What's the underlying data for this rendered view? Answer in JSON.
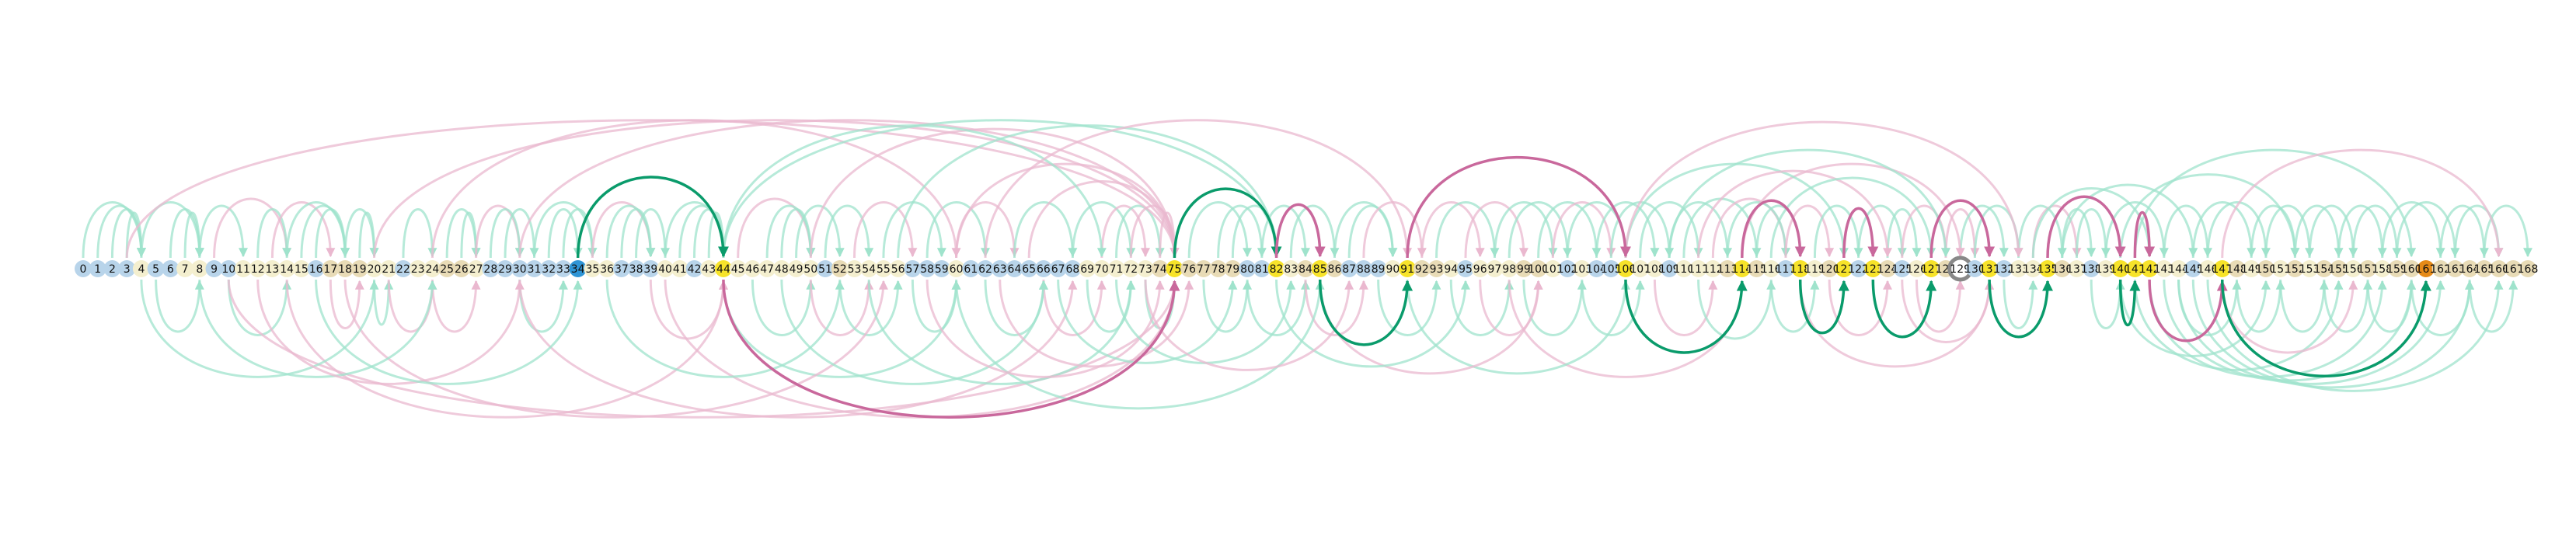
{
  "diagram": {
    "node_count": 169,
    "node_types": {
      "0": "blue",
      "1": "blue",
      "2": "blue",
      "3": "blue",
      "4": "cream",
      "5": "blue",
      "6": "blue",
      "7": "cream",
      "8": "cream",
      "9": "blue",
      "10": "blue",
      "11": "cream",
      "12": "cream",
      "13": "cream",
      "14": "cream",
      "15": "cream",
      "16": "blue",
      "17": "tan",
      "18": "tan",
      "19": "tan",
      "20": "cream",
      "21": "cream",
      "22": "blue",
      "23": "cream",
      "24": "cream",
      "25": "tan",
      "26": "tan",
      "27": "cream",
      "28": "blue",
      "29": "blue",
      "30": "blue",
      "31": "blue",
      "32": "blue",
      "33": "blue",
      "34": "accent-blue",
      "35": "cream",
      "36": "cream",
      "37": "blue",
      "38": "blue",
      "39": "blue",
      "40": "cream",
      "41": "cream",
      "42": "blue",
      "43": "cream",
      "44": "yellow",
      "45": "cream",
      "46": "cream",
      "47": "cream",
      "48": "cream",
      "49": "cream",
      "50": "cream",
      "51": "blue",
      "52": "tan",
      "53": "cream",
      "54": "cream",
      "55": "cream",
      "56": "cream",
      "57": "blue",
      "58": "blue",
      "59": "blue",
      "60": "cream",
      "61": "blue",
      "62": "blue",
      "63": "blue",
      "64": "blue",
      "65": "blue",
      "66": "blue",
      "67": "blue",
      "68": "blue",
      "69": "cream",
      "70": "cream",
      "71": "cream",
      "72": "cream",
      "73": "cream",
      "74": "tan",
      "75": "yellow",
      "76": "tan",
      "77": "tan",
      "78": "tan",
      "79": "tan",
      "80": "blue",
      "81": "blue",
      "82": "yellow",
      "83": "cream",
      "84": "tan",
      "85": "yellow",
      "86": "tan",
      "87": "blue",
      "88": "blue",
      "89": "blue",
      "90": "cream",
      "91": "yellow",
      "92": "tan",
      "93": "tan",
      "94": "cream",
      "95": "blue",
      "96": "cream",
      "97": "cream",
      "98": "cream",
      "99": "tan",
      "100": "tan",
      "101": "cream",
      "102": "blue",
      "103": "cream",
      "104": "blue",
      "105": "blue",
      "106": "yellow",
      "107": "cream",
      "108": "cream",
      "109": "blue",
      "110": "cream",
      "111": "cream",
      "112": "cream",
      "113": "tan",
      "114": "yellow",
      "115": "tan",
      "116": "cream",
      "117": "blue",
      "118": "yellow",
      "119": "cream",
      "120": "tan",
      "121": "yellow",
      "122": "blue",
      "123": "yellow",
      "124": "tan",
      "125": "blue",
      "126": "cream",
      "127": "yellow",
      "128": "tan",
      "129": "gray-ring",
      "130": "blue",
      "131": "yellow",
      "132": "blue",
      "133": "cream",
      "134": "cream",
      "135": "yellow",
      "136": "tan",
      "137": "cream",
      "138": "blue",
      "139": "cream",
      "140": "yellow",
      "141": "yellow",
      "142": "yellow",
      "143": "cream",
      "144": "cream",
      "145": "blue",
      "146": "cream",
      "147": "yellow",
      "148": "tan",
      "149": "cream",
      "150": "tan",
      "151": "cream",
      "152": "tan",
      "153": "cream",
      "154": "tan",
      "155": "tan",
      "156": "cream",
      "157": "tan",
      "158": "cream",
      "159": "tan",
      "160": "tan",
      "161": "orange",
      "162": "tan",
      "163": "tan",
      "164": "tan",
      "165": "tan",
      "166": "tan",
      "167": "tan",
      "168": "tan"
    },
    "highlight_edges": [
      {
        "from": 34,
        "to": 44,
        "color": "green",
        "side": "top"
      },
      {
        "from": 44,
        "to": 75,
        "color": "pink",
        "side": "bottom"
      },
      {
        "from": 75,
        "to": 82,
        "color": "green",
        "side": "top"
      },
      {
        "from": 82,
        "to": 85,
        "color": "pink",
        "side": "top"
      },
      {
        "from": 85,
        "to": 91,
        "color": "green",
        "side": "bottom"
      },
      {
        "from": 91,
        "to": 106,
        "color": "pink",
        "side": "top"
      },
      {
        "from": 106,
        "to": 114,
        "color": "green",
        "side": "bottom"
      },
      {
        "from": 114,
        "to": 118,
        "color": "pink",
        "side": "top"
      },
      {
        "from": 118,
        "to": 121,
        "color": "green",
        "side": "bottom"
      },
      {
        "from": 121,
        "to": 123,
        "color": "pink",
        "side": "top"
      },
      {
        "from": 123,
        "to": 127,
        "color": "green",
        "side": "bottom"
      },
      {
        "from": 127,
        "to": 131,
        "color": "pink",
        "side": "top"
      },
      {
        "from": 131,
        "to": 135,
        "color": "green",
        "side": "bottom"
      },
      {
        "from": 135,
        "to": 140,
        "color": "pink",
        "side": "top"
      },
      {
        "from": 140,
        "to": 141,
        "color": "green",
        "side": "bottom"
      },
      {
        "from": 141,
        "to": 142,
        "color": "pink",
        "side": "top"
      },
      {
        "from": 142,
        "to": 147,
        "color": "pink",
        "side": "bottom"
      },
      {
        "from": 147,
        "to": 161,
        "color": "green",
        "side": "bottom"
      }
    ],
    "background_edges": [
      [
        0,
        4,
        "green",
        "top"
      ],
      [
        1,
        4,
        "green",
        "top"
      ],
      [
        2,
        4,
        "green",
        "top"
      ],
      [
        3,
        4,
        "green",
        "top"
      ],
      [
        4,
        8,
        "green",
        "top"
      ],
      [
        5,
        8,
        "green",
        "bottom"
      ],
      [
        6,
        8,
        "green",
        "top"
      ],
      [
        7,
        8,
        "green",
        "top"
      ],
      [
        8,
        11,
        "green",
        "top"
      ],
      [
        9,
        14,
        "pink",
        "top"
      ],
      [
        10,
        14,
        "green",
        "bottom"
      ],
      [
        12,
        14,
        "green",
        "top"
      ],
      [
        13,
        17,
        "pink",
        "top"
      ],
      [
        14,
        18,
        "green",
        "top"
      ],
      [
        15,
        18,
        "green",
        "top"
      ],
      [
        16,
        18,
        "green",
        "top"
      ],
      [
        17,
        19,
        "pink",
        "bottom"
      ],
      [
        18,
        20,
        "green",
        "top"
      ],
      [
        19,
        20,
        "green",
        "top"
      ],
      [
        20,
        21,
        "green",
        "bottom"
      ],
      [
        21,
        24,
        "pink",
        "bottom"
      ],
      [
        22,
        24,
        "green",
        "top"
      ],
      [
        24,
        27,
        "pink",
        "bottom"
      ],
      [
        25,
        27,
        "green",
        "top"
      ],
      [
        26,
        27,
        "green",
        "top"
      ],
      [
        27,
        30,
        "pink",
        "top"
      ],
      [
        28,
        30,
        "green",
        "top"
      ],
      [
        29,
        31,
        "green",
        "top"
      ],
      [
        30,
        33,
        "green",
        "bottom"
      ],
      [
        31,
        35,
        "green",
        "top"
      ],
      [
        32,
        34,
        "green",
        "top"
      ],
      [
        33,
        35,
        "green",
        "top"
      ],
      [
        35,
        39,
        "pink",
        "top"
      ],
      [
        36,
        39,
        "green",
        "top"
      ],
      [
        37,
        39,
        "green",
        "top"
      ],
      [
        38,
        40,
        "green",
        "top"
      ],
      [
        39,
        44,
        "pink",
        "bottom"
      ],
      [
        40,
        44,
        "green",
        "top"
      ],
      [
        41,
        44,
        "green",
        "top"
      ],
      [
        42,
        44,
        "green",
        "top"
      ],
      [
        43,
        44,
        "green",
        "top"
      ],
      [
        45,
        50,
        "pink",
        "top"
      ],
      [
        46,
        50,
        "green",
        "bottom"
      ],
      [
        47,
        50,
        "green",
        "top"
      ],
      [
        48,
        50,
        "green",
        "top"
      ],
      [
        49,
        52,
        "green",
        "top"
      ],
      [
        50,
        54,
        "pink",
        "bottom"
      ],
      [
        51,
        54,
        "green",
        "top"
      ],
      [
        52,
        56,
        "green",
        "bottom"
      ],
      [
        53,
        57,
        "pink",
        "top"
      ],
      [
        55,
        59,
        "green",
        "top"
      ],
      [
        57,
        60,
        "green",
        "bottom"
      ],
      [
        58,
        62,
        "green",
        "top"
      ],
      [
        60,
        64,
        "pink",
        "top"
      ],
      [
        62,
        66,
        "green",
        "bottom"
      ],
      [
        64,
        68,
        "green",
        "top"
      ],
      [
        66,
        70,
        "pink",
        "bottom"
      ],
      [
        68,
        72,
        "green",
        "top"
      ],
      [
        69,
        72,
        "green",
        "bottom"
      ],
      [
        70,
        73,
        "pink",
        "top"
      ],
      [
        71,
        74,
        "green",
        "top"
      ],
      [
        72,
        75,
        "pink",
        "top"
      ],
      [
        73,
        75,
        "green",
        "bottom"
      ],
      [
        74,
        75,
        "pink",
        "top"
      ],
      [
        3,
        75,
        "pink",
        "top"
      ],
      [
        10,
        75,
        "pink",
        "bottom"
      ],
      [
        20,
        75,
        "pink",
        "top"
      ],
      [
        30,
        75,
        "pink",
        "top"
      ],
      [
        40,
        75,
        "pink",
        "bottom"
      ],
      [
        50,
        75,
        "pink",
        "top"
      ],
      [
        60,
        75,
        "pink",
        "top"
      ],
      [
        65,
        75,
        "pink",
        "top"
      ],
      [
        76,
        80,
        "green",
        "top"
      ],
      [
        77,
        80,
        "green",
        "bottom"
      ],
      [
        78,
        81,
        "green",
        "top"
      ],
      [
        79,
        82,
        "green",
        "top"
      ],
      [
        80,
        84,
        "green",
        "bottom"
      ],
      [
        81,
        84,
        "green",
        "top"
      ],
      [
        83,
        86,
        "green",
        "top"
      ],
      [
        84,
        88,
        "pink",
        "bottom"
      ],
      [
        86,
        90,
        "green",
        "top"
      ],
      [
        87,
        90,
        "green",
        "top"
      ],
      [
        88,
        92,
        "pink",
        "top"
      ],
      [
        89,
        93,
        "green",
        "bottom"
      ],
      [
        92,
        96,
        "pink",
        "top"
      ],
      [
        93,
        97,
        "green",
        "top"
      ],
      [
        94,
        98,
        "green",
        "bottom"
      ],
      [
        95,
        99,
        "pink",
        "top"
      ],
      [
        96,
        100,
        "pink",
        "bottom"
      ],
      [
        97,
        101,
        "green",
        "top"
      ],
      [
        98,
        102,
        "green",
        "top"
      ],
      [
        99,
        103,
        "green",
        "bottom"
      ],
      [
        100,
        104,
        "green",
        "top"
      ],
      [
        101,
        105,
        "pink",
        "top"
      ],
      [
        102,
        106,
        "green",
        "top"
      ],
      [
        103,
        107,
        "green",
        "bottom"
      ],
      [
        104,
        108,
        "green",
        "top"
      ],
      [
        105,
        109,
        "green",
        "top"
      ],
      [
        107,
        111,
        "green",
        "top"
      ],
      [
        108,
        112,
        "pink",
        "bottom"
      ],
      [
        109,
        113,
        "green",
        "top"
      ],
      [
        110,
        115,
        "green",
        "top"
      ],
      [
        111,
        116,
        "green",
        "bottom"
      ],
      [
        112,
        117,
        "pink",
        "top"
      ],
      [
        113,
        117,
        "green",
        "top"
      ],
      [
        115,
        118,
        "green",
        "top"
      ],
      [
        116,
        119,
        "green",
        "bottom"
      ],
      [
        117,
        120,
        "pink",
        "top"
      ],
      [
        119,
        122,
        "green",
        "top"
      ],
      [
        120,
        124,
        "pink",
        "bottom"
      ],
      [
        122,
        125,
        "green",
        "top"
      ],
      [
        124,
        126,
        "green",
        "top"
      ],
      [
        125,
        128,
        "pink",
        "top"
      ],
      [
        126,
        129,
        "pink",
        "bottom"
      ],
      [
        128,
        130,
        "pink",
        "top"
      ],
      [
        129,
        132,
        "green",
        "top"
      ],
      [
        130,
        133,
        "green",
        "top"
      ],
      [
        132,
        134,
        "green",
        "bottom"
      ],
      [
        133,
        136,
        "green",
        "top"
      ],
      [
        134,
        137,
        "pink",
        "top"
      ],
      [
        136,
        138,
        "green",
        "top"
      ],
      [
        137,
        139,
        "green",
        "top"
      ],
      [
        138,
        140,
        "green",
        "bottom"
      ],
      [
        139,
        143,
        "green",
        "top"
      ],
      [
        143,
        146,
        "green",
        "top"
      ],
      [
        144,
        148,
        "green",
        "bottom"
      ],
      [
        145,
        149,
        "green",
        "top"
      ],
      [
        146,
        150,
        "green",
        "top"
      ],
      [
        148,
        151,
        "green",
        "bottom"
      ],
      [
        149,
        152,
        "green",
        "top"
      ],
      [
        150,
        153,
        "green",
        "top"
      ],
      [
        151,
        154,
        "green",
        "bottom"
      ],
      [
        152,
        155,
        "green",
        "top"
      ],
      [
        153,
        156,
        "green",
        "top"
      ],
      [
        154,
        157,
        "green",
        "bottom"
      ],
      [
        155,
        158,
        "green",
        "top"
      ],
      [
        156,
        159,
        "green",
        "top"
      ],
      [
        157,
        160,
        "green",
        "bottom"
      ],
      [
        158,
        162,
        "green",
        "top"
      ],
      [
        159,
        163,
        "green",
        "top"
      ],
      [
        160,
        164,
        "green",
        "bottom"
      ],
      [
        162,
        165,
        "green",
        "top"
      ],
      [
        163,
        166,
        "green",
        "top"
      ],
      [
        164,
        167,
        "green",
        "bottom"
      ],
      [
        165,
        168,
        "green",
        "top"
      ],
      [
        140,
        150,
        "green",
        "bottom"
      ],
      [
        141,
        155,
        "green",
        "bottom"
      ],
      [
        142,
        158,
        "green",
        "bottom"
      ],
      [
        143,
        160,
        "green",
        "bottom"
      ],
      [
        144,
        162,
        "green",
        "bottom"
      ],
      [
        145,
        164,
        "green",
        "bottom"
      ],
      [
        146,
        166,
        "green",
        "bottom"
      ],
      [
        134,
        142,
        "green",
        "top"
      ],
      [
        136,
        145,
        "green",
        "top"
      ],
      [
        140,
        152,
        "green",
        "top"
      ],
      [
        141,
        160,
        "green",
        "top"
      ],
      [
        114,
        129,
        "pink",
        "top"
      ],
      [
        118,
        131,
        "pink",
        "bottom"
      ],
      [
        125,
        131,
        "pink",
        "bottom"
      ],
      [
        106,
        121,
        "green",
        "top"
      ],
      [
        98,
        114,
        "pink",
        "bottom"
      ],
      [
        91,
        106,
        "green",
        "bottom"
      ],
      [
        85,
        100,
        "pink",
        "bottom"
      ],
      [
        82,
        95,
        "green",
        "bottom"
      ],
      [
        44,
        60,
        "green",
        "bottom"
      ],
      [
        44,
        70,
        "green",
        "top"
      ],
      [
        24,
        60,
        "pink",
        "top"
      ],
      [
        30,
        68,
        "pink",
        "bottom"
      ],
      [
        14,
        44,
        "pink",
        "bottom"
      ],
      [
        18,
        55,
        "pink",
        "bottom"
      ],
      [
        44,
        82,
        "green",
        "top"
      ],
      [
        56,
        82,
        "green",
        "top"
      ],
      [
        60,
        85,
        "green",
        "bottom"
      ],
      [
        62,
        91,
        "pink",
        "top"
      ],
      [
        4,
        20,
        "green",
        "bottom"
      ],
      [
        8,
        24,
        "green",
        "bottom"
      ],
      [
        12,
        30,
        "pink",
        "bottom"
      ],
      [
        16,
        34,
        "green",
        "bottom"
      ],
      [
        36,
        52,
        "green",
        "bottom"
      ],
      [
        48,
        66,
        "green",
        "bottom"
      ],
      [
        54,
        72,
        "green",
        "bottom"
      ],
      [
        58,
        74,
        "pink",
        "bottom"
      ],
      [
        63,
        76,
        "pink",
        "bottom"
      ],
      [
        67,
        79,
        "green",
        "bottom"
      ],
      [
        71,
        83,
        "green",
        "bottom"
      ],
      [
        73,
        87,
        "pink",
        "bottom"
      ],
      [
        106,
        133,
        "pink",
        "top"
      ],
      [
        109,
        128,
        "green",
        "top"
      ],
      [
        111,
        124,
        "pink",
        "top"
      ],
      [
        116,
        127,
        "green",
        "top"
      ],
      [
        147,
        166,
        "pink",
        "top"
      ],
      [
        147,
        156,
        "pink",
        "bottom"
      ]
    ]
  }
}
